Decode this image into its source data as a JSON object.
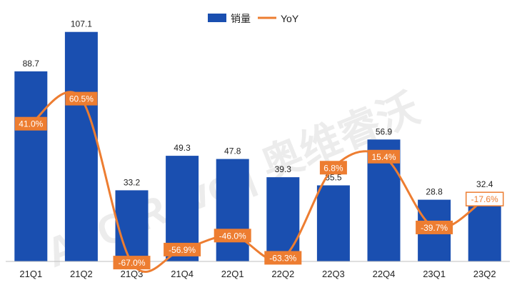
{
  "chart_data": {
    "type": "bar",
    "categories": [
      "21Q1",
      "21Q2",
      "21Q3",
      "21Q4",
      "22Q1",
      "22Q2",
      "22Q3",
      "22Q4",
      "23Q1",
      "23Q2"
    ],
    "series": [
      {
        "name": "销量",
        "type": "bar",
        "values": [
          88.7,
          107.1,
          33.2,
          49.3,
          47.8,
          39.3,
          35.5,
          56.9,
          28.8,
          32.4
        ],
        "labels": [
          "88.7",
          "107.1",
          "33.2",
          "49.3",
          "47.8",
          "39.3",
          "35.5",
          "56.9",
          "28.8",
          "32.4"
        ]
      },
      {
        "name": "YoY",
        "type": "line",
        "values": [
          41.0,
          60.5,
          -67.0,
          -56.9,
          -46.0,
          -63.3,
          6.8,
          15.4,
          -39.7,
          -17.6
        ],
        "labels": [
          "41.0%",
          "60.5%",
          "-67.0%",
          "-56.9%",
          "-46.0%",
          "-63.3%",
          "6.8%",
          "15.4%",
          "-39.7%",
          "-17.6%"
        ]
      }
    ],
    "ylim_bar": [
      0,
      110
    ],
    "ylim_line": [
      -115,
      75
    ],
    "legend": {
      "position": "top-center",
      "items": [
        "销量",
        "YoY"
      ]
    },
    "grid": false,
    "watermark": "AVC Revo | 奥维睿沃",
    "colors": {
      "bar": "#1A4FB0",
      "line": "#ED7D31",
      "axis": "#BFBFBF"
    }
  }
}
